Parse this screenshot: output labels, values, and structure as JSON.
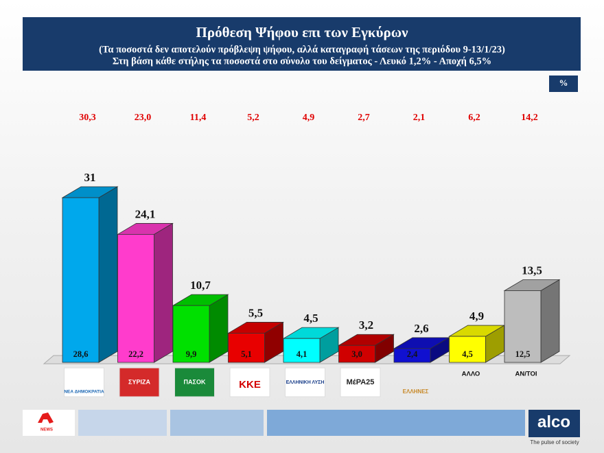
{
  "chart_data": {
    "type": "bar3d",
    "title": "Πρόθεση Ψήφου επι των Εγκύρων",
    "subtitle": [
      "(Τα ποσοστά δεν αποτελούν πρόβλεψη ψήφου, αλλά καταγραφή τάσεων της περιόδου  9-13/1/23)",
      "Στη βάση κάθε στήλης τα ποσοστά στο σύνολο του δείγματος - Λευκό 1,2% - Αποχή 6,5%"
    ],
    "unit_label": "%",
    "categories": [
      "ΝΕΑ ΔΗΜΟΚΡΑΤΙΑ",
      "ΣΥΡΙΖΑ",
      "ΠΑΣΟΚ",
      "ΚΚΕ",
      "ΕΛΛΗΝΙΚΗ ΛΥΣΗ",
      "ΜέΡΑ25",
      "ΕΛΛΗΝΕΣ",
      "ΑΛΛΟ",
      "ΑΝ/ΤΟΙ"
    ],
    "series": [
      {
        "values": [
          31,
          24.1,
          10.7,
          5.5,
          4.5,
          3.2,
          2.6,
          4.9,
          13.5
        ],
        "value_labels": [
          "31",
          "24,1",
          "10,7",
          "5,5",
          "4,5",
          "3,2",
          "2,6",
          "4,9",
          "13,5"
        ],
        "colors": [
          "#00a8ec",
          "#ff3ccc",
          "#00e000",
          "#e80000",
          "#00ffff",
          "#d00000",
          "#1010d0",
          "#ffff00",
          "#bdbdbd"
        ]
      },
      {
        "values": [
          28.6,
          22.2,
          9.9,
          5.1,
          4.1,
          3.0,
          2.4,
          4.5,
          12.5
        ],
        "value_labels": [
          "28,6",
          "22,2",
          "9,9",
          "5,1",
          "4,1",
          "3,0",
          "2,4",
          "4,5",
          "12,5"
        ]
      },
      {
        "values": [
          30.3,
          23.0,
          11.4,
          5.2,
          4.9,
          2.7,
          2.1,
          6.2,
          14.2
        ],
        "value_labels": [
          "30,3",
          "23,0",
          "11,4",
          "5,2",
          "4,9",
          "2,7",
          "2,1",
          "6,2",
          "14,2"
        ],
        "color": "#e00000"
      }
    ]
  },
  "footer": {
    "news_logo": "NEWS",
    "brand": "alco",
    "tagline": "The pulse of society"
  }
}
